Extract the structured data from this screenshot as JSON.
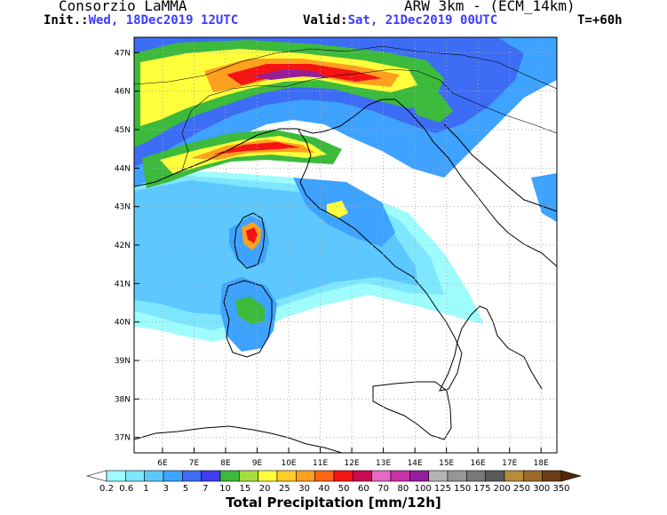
{
  "header": {
    "org": "Consorzio LaMMA",
    "model": "ARW 3km - (ECM_14km)",
    "init_label": "Init.:",
    "init_value": "Wed, 18Dec2019 12UTC",
    "valid_label": "Valid:",
    "valid_value": "Sat, 21Dec2019 00UTC",
    "forecast_step": "T=+60h"
  },
  "map": {
    "lat_labels": [
      "47N",
      "46N",
      "45N",
      "44N",
      "43N",
      "42N",
      "41N",
      "40N",
      "39N",
      "38N",
      "37N"
    ],
    "lon_labels": [
      "6E",
      "7E",
      "8E",
      "9E",
      "10E",
      "11E",
      "12E",
      "13E",
      "14E",
      "15E",
      "16E",
      "17E",
      "18E"
    ],
    "lat_range": [
      36.6,
      47.4
    ],
    "lon_range": [
      5.1,
      18.5
    ]
  },
  "colorbar": {
    "title": "Total Precipitation [mm/12h]",
    "labels": [
      "0.2",
      "0.6",
      "1",
      "3",
      "5",
      "7",
      "10",
      "15",
      "20",
      "25",
      "30",
      "40",
      "50",
      "60",
      "70",
      "80",
      "100",
      "125",
      "150",
      "175",
      "200",
      "250",
      "300",
      "350"
    ],
    "colors": [
      "#9ffcfc",
      "#7ee6ff",
      "#5cc8ff",
      "#3ea2ff",
      "#3d6cf5",
      "#3e3ef0",
      "#3cba3c",
      "#a8dc3c",
      "#ffff3c",
      "#ffcc28",
      "#ffa01e",
      "#ff6414",
      "#f51414",
      "#c80a50",
      "#e669c8",
      "#c832aa",
      "#961e9b",
      "#b4b4b4",
      "#969696",
      "#787878",
      "#5a5a5a",
      "#b48c3c",
      "#9b6a28",
      "#6e3c14"
    ],
    "under_color": "#ffffff",
    "over_color": "#50280a"
  }
}
